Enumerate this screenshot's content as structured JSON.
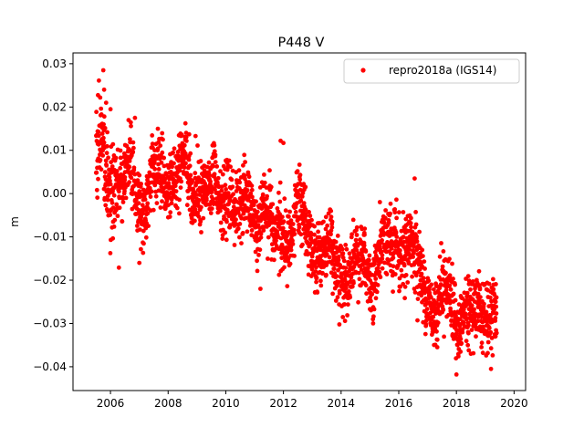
{
  "chart_data": {
    "type": "scatter",
    "title": "P448 V",
    "xlabel": "",
    "ylabel": "m",
    "xlim": [
      2004.7,
      2020.4
    ],
    "ylim": [
      -0.0455,
      0.0325
    ],
    "x_ticks": [
      2006,
      2008,
      2010,
      2012,
      2014,
      2016,
      2018,
      2020
    ],
    "x_tick_labels": [
      "2006",
      "2008",
      "2010",
      "2012",
      "2014",
      "2016",
      "2018",
      "2020"
    ],
    "y_ticks": [
      0.03,
      0.02,
      0.01,
      0.0,
      -0.01,
      -0.02,
      -0.03,
      -0.04
    ],
    "y_tick_labels": [
      "0.03",
      "0.02",
      "0.01",
      "0.00",
      "−0.01",
      "−0.02",
      "−0.03",
      "−0.04"
    ],
    "grid": false,
    "legend_position": "top-right",
    "marker_color": "#ff0000",
    "series": [
      {
        "name": "repro2018a (IGS14)",
        "color": "#ff0000",
        "trend": {
          "x": [
            2005.5,
            2019.4
          ],
          "y": [
            0.008,
            -0.027
          ]
        },
        "notable_points": [
          {
            "x": 2005.75,
            "y": 0.0285
          },
          {
            "x": 2005.78,
            "y": 0.024
          },
          {
            "x": 2005.85,
            "y": 0.021
          },
          {
            "x": 2006.0,
            "y": 0.0195
          },
          {
            "x": 2006.85,
            "y": 0.0175
          },
          {
            "x": 2008.95,
            "y": 0.0133
          },
          {
            "x": 2011.9,
            "y": 0.0122
          },
          {
            "x": 2012.0,
            "y": 0.0117
          },
          {
            "x": 2010.6,
            "y": 0.0065
          },
          {
            "x": 2016.55,
            "y": 0.0035
          },
          {
            "x": 2018.0,
            "y": -0.0418
          },
          {
            "x": 2019.2,
            "y": -0.0405
          },
          {
            "x": 2007.0,
            "y": -0.016
          },
          {
            "x": 2015.0,
            "y": -0.0267
          },
          {
            "x": 2011.2,
            "y": -0.022
          }
        ]
      }
    ]
  }
}
